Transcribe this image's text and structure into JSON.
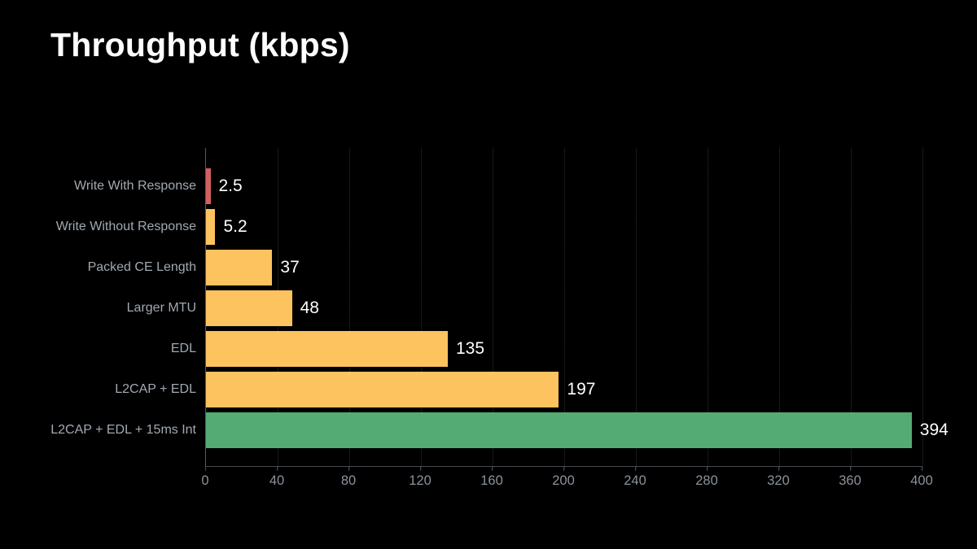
{
  "title": "Throughput (kbps)",
  "chart_data": {
    "type": "bar",
    "orientation": "horizontal",
    "title": "Throughput (kbps)",
    "categories": [
      "Write With Response",
      "Write Without Response",
      "Packed CE Length",
      "Larger MTU",
      "EDL",
      "L2CAP + EDL",
      "L2CAP + EDL + 15ms Int"
    ],
    "values": [
      2.5,
      5.2,
      37,
      48,
      135,
      197,
      394
    ],
    "value_labels": [
      "2.5",
      "5.2",
      "37",
      "48",
      "135",
      "197",
      "394"
    ],
    "bar_colors": [
      "#d2605f",
      "#fcc35e",
      "#fcc35e",
      "#fcc35e",
      "#fcc35e",
      "#fcc35e",
      "#55ab74"
    ],
    "xlabel": "",
    "ylabel": "",
    "xlim": [
      0,
      400
    ],
    "x_ticks": [
      0,
      40,
      80,
      120,
      160,
      200,
      240,
      280,
      320,
      360,
      400
    ],
    "grid": "vertical dotted gridlines at each x tick",
    "legend": "none"
  },
  "colors": {
    "background": "#000000",
    "title_text": "#ffffff",
    "category_label": "#a2a9b1",
    "value_label": "#ffffff",
    "tick_label": "#8b929b",
    "axis_line": "#43474d",
    "y_axis_line": "#565b62",
    "gridline": "#2b2f34",
    "bar_red": "#d2605f",
    "bar_yellow": "#fcc35e",
    "bar_green": "#55ab74"
  }
}
